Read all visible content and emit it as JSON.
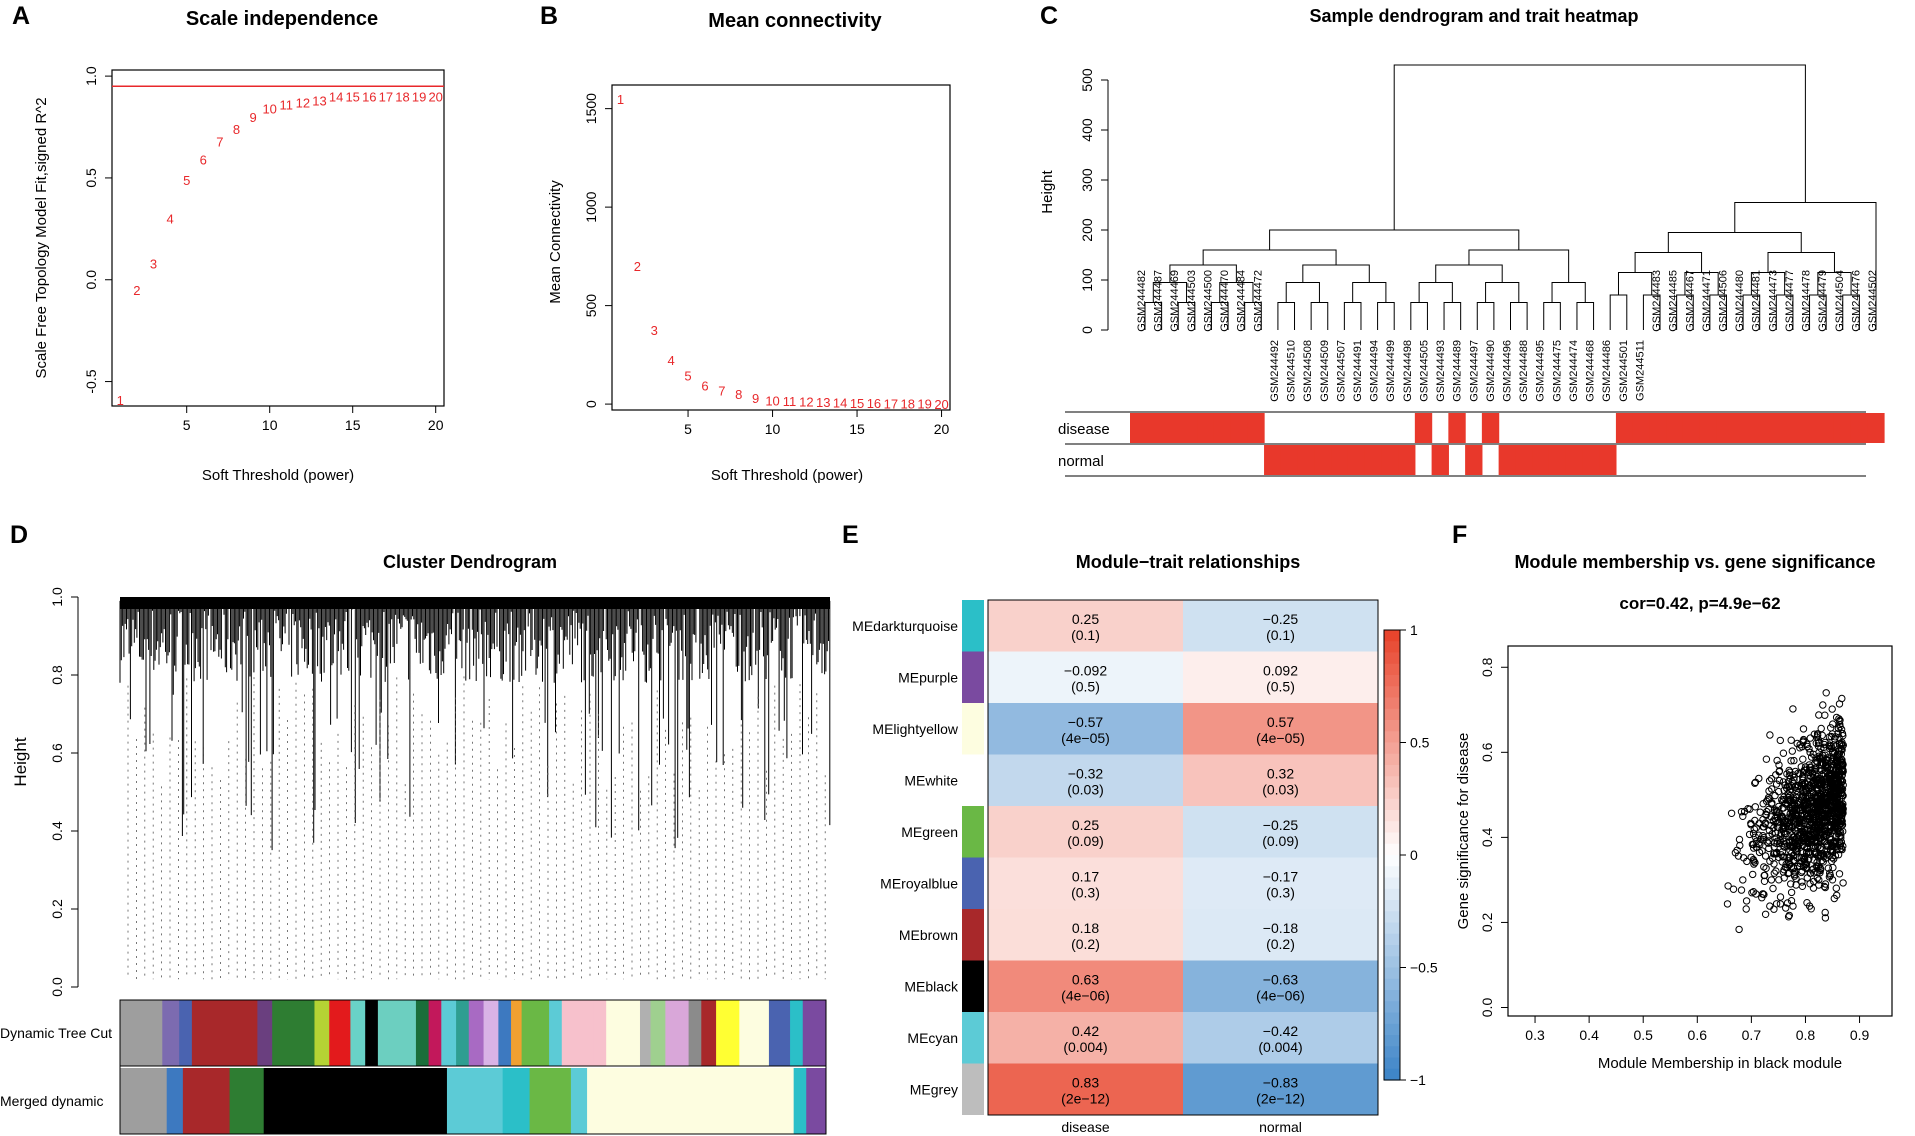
{
  "panels": {
    "A": {
      "label": "A",
      "chart_data": {
        "type": "scatter",
        "title": "Scale independence",
        "xlabel": "Soft Threshold (power)",
        "ylabel": "Scale Free Topology Model Fit,signed R^2",
        "xlim": [
          0.5,
          20.5
        ],
        "ylim": [
          -0.62,
          1.03
        ],
        "xticks": [
          5,
          10,
          15,
          20
        ],
        "yticks": [
          -0.5,
          0.0,
          0.5,
          1.0
        ],
        "ytick_labels": [
          "-0.5",
          "0.0",
          "0.5",
          "1.0"
        ],
        "hline": 0.95,
        "x": [
          1,
          2,
          3,
          4,
          5,
          6,
          7,
          8,
          9,
          10,
          11,
          12,
          13,
          14,
          15,
          16,
          17,
          18,
          19,
          20
        ],
        "y": [
          -0.59,
          -0.05,
          0.08,
          0.3,
          0.49,
          0.59,
          0.68,
          0.74,
          0.8,
          0.84,
          0.86,
          0.87,
          0.88,
          0.9,
          0.9,
          0.9,
          0.9,
          0.9,
          0.9,
          0.9
        ],
        "point_labels": [
          "1",
          "2",
          "3",
          "4",
          "5",
          "6",
          "7",
          "8",
          "9",
          "10",
          "11",
          "12",
          "13",
          "14",
          "15",
          "16",
          "17",
          "18",
          "19",
          "20"
        ],
        "point_color": "#e8282b"
      }
    },
    "B": {
      "label": "B",
      "chart_data": {
        "type": "scatter",
        "title": "Mean connectivity",
        "xlabel": "Soft Threshold (power)",
        "ylabel": "Mean Connectivity",
        "xlim": [
          0.5,
          20.5
        ],
        "ylim": [
          -30,
          1620
        ],
        "xticks": [
          5,
          10,
          15,
          20
        ],
        "yticks": [
          0,
          500,
          1000,
          1500
        ],
        "x": [
          1,
          2,
          3,
          4,
          5,
          6,
          7,
          8,
          9,
          10,
          11,
          12,
          13,
          14,
          15,
          16,
          17,
          18,
          19,
          20
        ],
        "y": [
          1550,
          700,
          375,
          225,
          145,
          95,
          70,
          50,
          30,
          18,
          15,
          12,
          10,
          8,
          6,
          5,
          4,
          3,
          2,
          1
        ],
        "point_labels": [
          "1",
          "2",
          "3",
          "4",
          "5",
          "6",
          "7",
          "8",
          "9",
          "10",
          "11",
          "12",
          "13",
          "14",
          "15",
          "16",
          "17",
          "18",
          "19",
          "20"
        ],
        "point_color": "#e8282b"
      }
    },
    "C": {
      "label": "C",
      "title": "Sample dendrogram and trait heatmap",
      "ylabel": "Height",
      "yticks": [
        0,
        100,
        200,
        300,
        400,
        500
      ],
      "samples": [
        "GSM244482",
        "GSM244487",
        "GSM244469",
        "GSM244503",
        "GSM244500",
        "GSM244470",
        "GSM244484",
        "GSM244472",
        "GSM244492",
        "GSM244510",
        "GSM244508",
        "GSM244509",
        "GSM244507",
        "GSM244491",
        "GSM244494",
        "GSM244499",
        "GSM244498",
        "GSM244505",
        "GSM244493",
        "GSM244489",
        "GSM244497",
        "GSM244490",
        "GSM244496",
        "GSM244488",
        "GSM244495",
        "GSM244475",
        "GSM244474",
        "GSM244468",
        "GSM244486",
        "GSM244501",
        "GSM244511",
        "GSM244483",
        "GSM244485",
        "GSM244467",
        "GSM244471",
        "GSM244506",
        "GSM244480",
        "GSM244481",
        "GSM244473",
        "GSM244477",
        "GSM244478",
        "GSM244479",
        "GSM244504",
        "GSM244476",
        "GSM244502"
      ],
      "traits": [
        "disease",
        "normal"
      ],
      "disease_status": [
        1,
        1,
        1,
        1,
        1,
        1,
        1,
        1,
        0,
        0,
        0,
        0,
        0,
        0,
        0,
        0,
        0,
        1,
        0,
        1,
        0,
        1,
        0,
        0,
        0,
        0,
        0,
        0,
        0,
        1,
        1,
        1,
        1,
        1,
        1,
        1,
        1,
        1,
        1,
        1,
        1,
        1,
        1,
        1,
        1
      ],
      "trait_color": "#e8382b"
    },
    "D": {
      "label": "D",
      "title": "Cluster Dendrogram",
      "ylabel": "Height",
      "yticks": [
        "0.0",
        "0.2",
        "0.4",
        "0.6",
        "0.8",
        "1.0"
      ],
      "rows": [
        "Dynamic Tree Cut",
        "Merged dynamic"
      ]
    },
    "E": {
      "label": "E",
      "chart_data": {
        "type": "heatmap",
        "title": "Module−trait relationships",
        "columns": [
          "disease",
          "normal"
        ],
        "rows": [
          "MEdarkturquoise",
          "MEpurple",
          "MElightyellow",
          "MEwhite",
          "MEgreen",
          "MEroyalblue",
          "MEbrown",
          "MEblack",
          "MEcyan",
          "MEgrey"
        ],
        "row_colors": [
          "#2bbfc8",
          "#7a4aa0",
          "#fdfde0",
          "#ffffff",
          "#6ab845",
          "#4a63b0",
          "#a8282a",
          "#000000",
          "#5ccbd6",
          "#bdbdbd"
        ],
        "values": [
          [
            0.25,
            -0.25
          ],
          [
            -0.092,
            0.092
          ],
          [
            -0.57,
            0.57
          ],
          [
            -0.32,
            0.32
          ],
          [
            0.25,
            -0.25
          ],
          [
            0.17,
            -0.17
          ],
          [
            0.18,
            -0.18
          ],
          [
            0.63,
            -0.63
          ],
          [
            0.42,
            -0.42
          ],
          [
            0.83,
            -0.83
          ]
        ],
        "value_labels": [
          [
            "0.25",
            "−0.25"
          ],
          [
            "−0.092",
            "0.092"
          ],
          [
            "−0.57",
            "0.57"
          ],
          [
            "−0.32",
            "0.32"
          ],
          [
            "0.25",
            "−0.25"
          ],
          [
            "0.17",
            "−0.17"
          ],
          [
            "0.18",
            "−0.18"
          ],
          [
            "0.63",
            "−0.63"
          ],
          [
            "0.42",
            "−0.42"
          ],
          [
            "0.83",
            "−0.83"
          ]
        ],
        "pvalues": [
          [
            "(0.1)",
            "(0.1)"
          ],
          [
            "(0.5)",
            "(0.5)"
          ],
          [
            "(4e−05)",
            "(4e−05)"
          ],
          [
            "(0.03)",
            "(0.03)"
          ],
          [
            "(0.09)",
            "(0.09)"
          ],
          [
            "(0.3)",
            "(0.3)"
          ],
          [
            "(0.2)",
            "(0.2)"
          ],
          [
            "(4e−06)",
            "(4e−06)"
          ],
          [
            "(0.004)",
            "(0.004)"
          ],
          [
            "(2e−12)",
            "(2e−12)"
          ]
        ],
        "legend_ticks": [
          "1",
          "0.5",
          "0",
          "−0.5",
          "−1"
        ],
        "color_low": "#3f86c8",
        "color_mid": "#ffffff",
        "color_high": "#e8452d"
      }
    },
    "F": {
      "label": "F",
      "chart_data": {
        "type": "scatter",
        "title": "Module membership vs. gene significance",
        "subtitle": "cor=0.42, p=4.9e−62",
        "xlabel": "Module Membership in black module",
        "ylabel": "Gene significance for disease",
        "xlim": [
          0.25,
          0.96
        ],
        "ylim": [
          -0.02,
          0.85
        ],
        "xticks": [
          0.3,
          0.4,
          0.5,
          0.6,
          0.7,
          0.8,
          0.9
        ],
        "yticks": [
          0.0,
          0.2,
          0.4,
          0.6,
          0.8
        ],
        "xtick_labels": [
          "0.3",
          "0.4",
          "0.5",
          "0.6",
          "0.7",
          "0.8",
          "0.9"
        ],
        "ytick_labels": [
          "0.0",
          "0.2",
          "0.4",
          "0.6",
          "0.8"
        ],
        "n_points": 1200,
        "correlation": 0.42
      }
    }
  }
}
